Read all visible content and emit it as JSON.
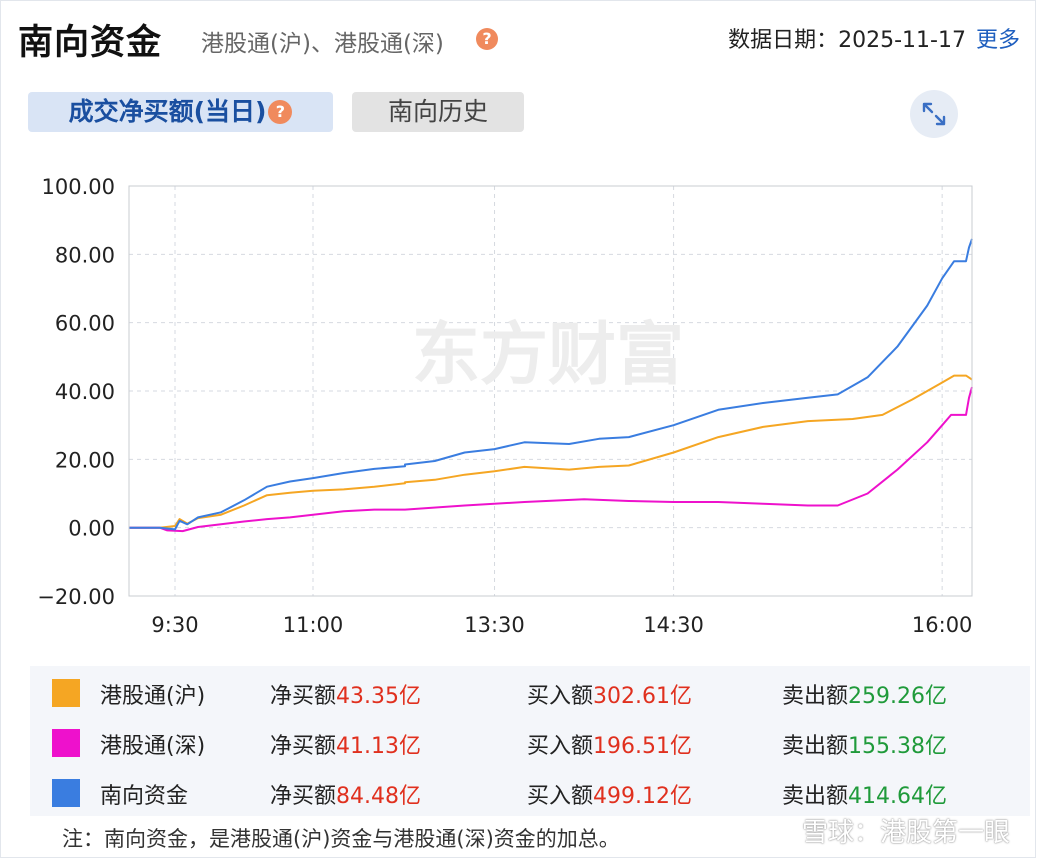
{
  "header": {
    "title": "南向资金",
    "subtitle": "港股通(沪)、港股通(深)",
    "help_icon": "question-circle-icon",
    "date_label": "数据日期：2025-11-17",
    "more_label": "更多"
  },
  "tabs": [
    {
      "label": "成交净买额(当日)",
      "active": true
    },
    {
      "label": "南向历史",
      "active": false
    }
  ],
  "expand_icon": "expand-arrows-icon",
  "watermark": "东方财富",
  "bottom_watermark": "雪球：港股第一眼",
  "note": "注：南向资金，是港股通(沪)资金与港股通(深)资金的加总。",
  "chart_data": {
    "type": "line",
    "ylim": [
      -20,
      100
    ],
    "y_ticks": [
      "100.00",
      "80.00",
      "60.00",
      "40.00",
      "20.00",
      "0.00",
      "−20.00"
    ],
    "x_ticks": [
      "9:30",
      "11:00",
      "13:30",
      "14:30",
      "16:00"
    ],
    "grid": true,
    "series": [
      {
        "name": "港股通(沪)",
        "color": "#f5a623",
        "points": [
          [
            "9:00",
            0
          ],
          [
            "9:20",
            0
          ],
          [
            "9:30",
            0.5
          ],
          [
            "9:33",
            2.5
          ],
          [
            "9:38",
            1.2
          ],
          [
            "9:45",
            2.8
          ],
          [
            "10:00",
            3.8
          ],
          [
            "10:15",
            6.5
          ],
          [
            "10:30",
            9.5
          ],
          [
            "10:45",
            10.2
          ],
          [
            "11:00",
            10.8
          ],
          [
            "11:20",
            11.2
          ],
          [
            "11:40",
            12.0
          ],
          [
            "12:00",
            13.0
          ],
          [
            "13:00",
            13.3
          ],
          [
            "13:10",
            14.0
          ],
          [
            "13:20",
            15.5
          ],
          [
            "13:30",
            16.5
          ],
          [
            "13:40",
            17.8
          ],
          [
            "13:55",
            17.0
          ],
          [
            "14:05",
            17.8
          ],
          [
            "14:15",
            18.2
          ],
          [
            "14:30",
            22.0
          ],
          [
            "14:45",
            26.5
          ],
          [
            "15:00",
            29.5
          ],
          [
            "15:15",
            31.2
          ],
          [
            "15:30",
            31.8
          ],
          [
            "15:40",
            33.0
          ],
          [
            "15:50",
            37.5
          ],
          [
            "16:00",
            42.5
          ],
          [
            "16:04",
            44.5
          ],
          [
            "16:08",
            44.5
          ],
          [
            "16:10",
            43.35
          ]
        ]
      },
      {
        "name": "港股通(深)",
        "color": "#ee11cc",
        "points": [
          [
            "9:00",
            0
          ],
          [
            "9:20",
            0
          ],
          [
            "9:25",
            -0.8
          ],
          [
            "9:35",
            -1.0
          ],
          [
            "9:45",
            0.2
          ],
          [
            "10:00",
            1.0
          ],
          [
            "10:15",
            1.8
          ],
          [
            "10:30",
            2.5
          ],
          [
            "10:45",
            3.0
          ],
          [
            "11:00",
            3.8
          ],
          [
            "11:20",
            4.8
          ],
          [
            "11:40",
            5.3
          ],
          [
            "12:00",
            5.3
          ],
          [
            "13:00",
            5.3
          ],
          [
            "13:20",
            6.5
          ],
          [
            "13:40",
            7.5
          ],
          [
            "14:00",
            8.3
          ],
          [
            "14:15",
            7.8
          ],
          [
            "14:30",
            7.5
          ],
          [
            "14:45",
            7.5
          ],
          [
            "15:00",
            7.0
          ],
          [
            "15:15",
            6.5
          ],
          [
            "15:25",
            6.5
          ],
          [
            "15:35",
            10.0
          ],
          [
            "15:45",
            17.0
          ],
          [
            "15:55",
            25.0
          ],
          [
            "16:00",
            30.0
          ],
          [
            "16:03",
            33.0
          ],
          [
            "16:08",
            33.0
          ],
          [
            "16:09",
            38.0
          ],
          [
            "16:10",
            41.13
          ]
        ]
      },
      {
        "name": "南向资金",
        "color": "#3a7de0",
        "points": [
          [
            "9:00",
            0
          ],
          [
            "9:20",
            0
          ],
          [
            "9:30",
            -0.5
          ],
          [
            "9:33",
            2.0
          ],
          [
            "9:38",
            1.0
          ],
          [
            "9:45",
            3.0
          ],
          [
            "10:00",
            4.5
          ],
          [
            "10:15",
            8.0
          ],
          [
            "10:30",
            12.0
          ],
          [
            "10:45",
            13.5
          ],
          [
            "11:00",
            14.5
          ],
          [
            "11:20",
            16.0
          ],
          [
            "11:40",
            17.2
          ],
          [
            "12:00",
            18.0
          ],
          [
            "13:00",
            18.5
          ],
          [
            "13:10",
            19.5
          ],
          [
            "13:20",
            22.0
          ],
          [
            "13:30",
            23.0
          ],
          [
            "13:40",
            25.0
          ],
          [
            "13:55",
            24.5
          ],
          [
            "14:05",
            26.0
          ],
          [
            "14:15",
            26.5
          ],
          [
            "14:30",
            30.0
          ],
          [
            "14:45",
            34.5
          ],
          [
            "15:00",
            36.5
          ],
          [
            "15:15",
            38.0
          ],
          [
            "15:25",
            39.0
          ],
          [
            "15:35",
            44.0
          ],
          [
            "15:45",
            53.0
          ],
          [
            "15:55",
            65.0
          ],
          [
            "16:00",
            73.0
          ],
          [
            "16:04",
            78.0
          ],
          [
            "16:08",
            78.0
          ],
          [
            "16:09",
            82.0
          ],
          [
            "16:10",
            84.48
          ]
        ]
      }
    ]
  },
  "legend": [
    {
      "name": "港股通(沪)",
      "color": "#f5a623",
      "net_label": "净买额",
      "net": "43.35亿",
      "buy_label": "买入额",
      "buy": "302.61亿",
      "sell_label": "卖出额",
      "sell": "259.26亿"
    },
    {
      "name": "港股通(深)",
      "color": "#ee11cc",
      "net_label": "净买额",
      "net": "41.13亿",
      "buy_label": "买入额",
      "buy": "196.51亿",
      "sell_label": "卖出额",
      "sell": "155.38亿"
    },
    {
      "name": "南向资金",
      "color": "#3a7de0",
      "net_label": "净买额",
      "net": "84.48亿",
      "buy_label": "买入额",
      "buy": "499.12亿",
      "sell_label": "卖出额",
      "sell": "414.64亿"
    }
  ]
}
